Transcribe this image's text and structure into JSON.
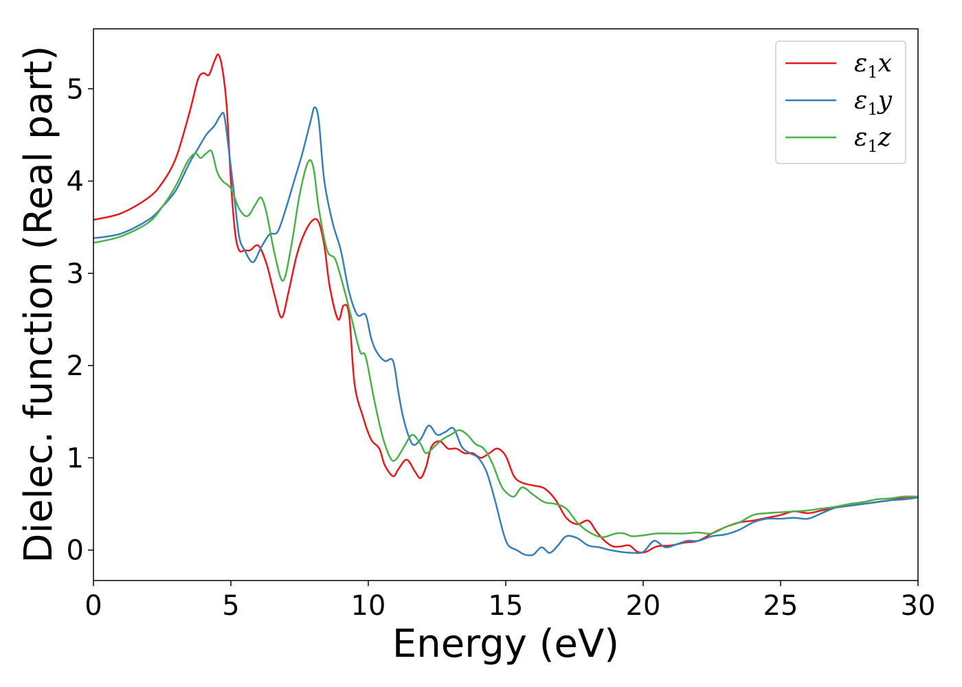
{
  "chart_data": {
    "type": "line",
    "title": "",
    "xlabel": "Energy (eV)",
    "ylabel": "Dielec. function (Real part)",
    "xlim": [
      0,
      30
    ],
    "ylim": [
      -0.33,
      5.65
    ],
    "xticks": [
      0,
      5,
      10,
      15,
      20,
      25,
      30
    ],
    "yticks": [
      0,
      1,
      2,
      3,
      4,
      5
    ],
    "xtick_labels": [
      "0",
      "5",
      "10",
      "15",
      "20",
      "25",
      "30"
    ],
    "ytick_labels": [
      "0",
      "1",
      "2",
      "3",
      "4",
      "5"
    ],
    "grid": false,
    "legend_position": "top-right",
    "series": [
      {
        "name": "ε₁x",
        "legend_label": {
          "base": "ε",
          "sub": "1",
          "suffix": "x"
        },
        "color": "#e41a1c",
        "x": [
          0,
          1,
          2,
          2.5,
          3,
          3.5,
          3.8,
          4.0,
          4.2,
          4.4,
          4.55,
          4.7,
          4.85,
          5.0,
          5.15,
          5.3,
          5.5,
          5.7,
          6.0,
          6.3,
          6.6,
          6.85,
          7.1,
          7.4,
          7.7,
          8.0,
          8.2,
          8.4,
          8.6,
          8.9,
          9.1,
          9.3,
          9.5,
          9.8,
          10.1,
          10.4,
          10.6,
          10.9,
          11.1,
          11.4,
          11.7,
          11.9,
          12.1,
          12.3,
          12.6,
          12.9,
          13.2,
          13.5,
          13.8,
          14.1,
          14.4,
          14.7,
          15.0,
          15.3,
          15.6,
          16.0,
          16.4,
          16.8,
          17.2,
          17.6,
          18.0,
          18.3,
          18.6,
          18.9,
          19.2,
          19.5,
          19.8,
          20.1,
          20.5,
          21.0,
          21.5,
          22.0,
          22.5,
          23.0,
          23.5,
          24.0,
          24.5,
          25.0,
          25.5,
          26.0,
          26.5,
          27.0,
          27.5,
          28.0,
          28.5,
          29.0,
          29.5,
          30
        ],
        "y": [
          3.58,
          3.65,
          3.82,
          3.98,
          4.25,
          4.75,
          5.1,
          5.17,
          5.15,
          5.3,
          5.37,
          5.2,
          4.8,
          4.0,
          3.45,
          3.25,
          3.25,
          3.25,
          3.3,
          3.1,
          2.75,
          2.52,
          2.8,
          3.2,
          3.45,
          3.58,
          3.55,
          3.3,
          2.85,
          2.5,
          2.65,
          2.55,
          1.8,
          1.45,
          1.2,
          1.1,
          0.92,
          0.8,
          0.88,
          0.98,
          0.85,
          0.78,
          0.9,
          1.12,
          1.18,
          1.1,
          1.1,
          1.05,
          1.05,
          1.0,
          1.05,
          1.1,
          1.02,
          0.8,
          0.73,
          0.7,
          0.67,
          0.55,
          0.35,
          0.28,
          0.32,
          0.2,
          0.1,
          0.04,
          0.04,
          0.05,
          -0.02,
          -0.02,
          0.04,
          0.05,
          0.08,
          0.1,
          0.18,
          0.25,
          0.3,
          0.32,
          0.35,
          0.38,
          0.42,
          0.4,
          0.43,
          0.46,
          0.48,
          0.5,
          0.52,
          0.54,
          0.57,
          0.58
        ]
      },
      {
        "name": "ε₁y",
        "legend_label": {
          "base": "ε",
          "sub": "1",
          "suffix": "y"
        },
        "color": "#377eb8",
        "x": [
          0,
          1,
          2,
          2.5,
          3,
          3.5,
          3.8,
          4.1,
          4.4,
          4.6,
          4.75,
          4.9,
          5.1,
          5.3,
          5.5,
          5.8,
          6.1,
          6.4,
          6.7,
          7.0,
          7.3,
          7.6,
          7.9,
          8.05,
          8.2,
          8.4,
          8.7,
          9.0,
          9.3,
          9.6,
          9.9,
          10.1,
          10.3,
          10.6,
          10.9,
          11.1,
          11.3,
          11.6,
          11.9,
          12.2,
          12.5,
          12.8,
          13.1,
          13.4,
          13.7,
          14.0,
          14.3,
          14.6,
          14.9,
          15.1,
          15.4,
          15.7,
          16.0,
          16.3,
          16.6,
          16.9,
          17.2,
          17.6,
          18.0,
          18.4,
          18.8,
          19.2,
          19.6,
          20.0,
          20.4,
          20.8,
          21.2,
          21.6,
          22.0,
          22.5,
          23.0,
          23.5,
          24.0,
          24.5,
          25.0,
          25.5,
          26.0,
          26.5,
          27.0,
          27.5,
          28.0,
          28.5,
          29.0,
          29.5,
          30
        ],
        "y": [
          3.38,
          3.43,
          3.58,
          3.72,
          3.9,
          4.2,
          4.35,
          4.5,
          4.6,
          4.7,
          4.72,
          4.4,
          3.9,
          3.4,
          3.25,
          3.12,
          3.28,
          3.42,
          3.45,
          3.7,
          4.0,
          4.3,
          4.65,
          4.8,
          4.65,
          4.0,
          3.55,
          3.25,
          2.8,
          2.55,
          2.55,
          2.3,
          2.15,
          2.05,
          2.05,
          1.7,
          1.4,
          1.15,
          1.2,
          1.35,
          1.25,
          1.28,
          1.32,
          1.12,
          1.05,
          1.0,
          0.85,
          0.55,
          0.2,
          0.05,
          0.0,
          -0.05,
          -0.05,
          0.03,
          -0.03,
          0.05,
          0.15,
          0.13,
          0.05,
          0.03,
          0.0,
          -0.02,
          -0.03,
          -0.02,
          0.1,
          0.03,
          0.06,
          0.1,
          0.1,
          0.15,
          0.17,
          0.22,
          0.3,
          0.34,
          0.34,
          0.35,
          0.34,
          0.4,
          0.46,
          0.48,
          0.5,
          0.52,
          0.54,
          0.55,
          0.57
        ]
      },
      {
        "name": "ε₁z",
        "legend_label": {
          "base": "ε",
          "sub": "1",
          "suffix": "z"
        },
        "color": "#4daf4a",
        "x": [
          0,
          1,
          2,
          2.5,
          3,
          3.4,
          3.7,
          3.9,
          4.1,
          4.3,
          4.5,
          4.7,
          5.0,
          5.3,
          5.6,
          5.9,
          6.1,
          6.3,
          6.6,
          6.9,
          7.2,
          7.5,
          7.8,
          8.0,
          8.2,
          8.5,
          8.8,
          9.1,
          9.4,
          9.7,
          9.9,
          10.2,
          10.5,
          10.8,
          11.0,
          11.3,
          11.6,
          11.9,
          12.1,
          12.4,
          12.7,
          13.0,
          13.3,
          13.6,
          13.9,
          14.2,
          14.5,
          14.8,
          15.0,
          15.3,
          15.6,
          16.0,
          16.4,
          16.8,
          17.2,
          17.6,
          18.0,
          18.5,
          19.0,
          19.3,
          19.6,
          20.0,
          20.5,
          21.0,
          21.5,
          22.0,
          22.5,
          23.0,
          23.5,
          24.0,
          24.5,
          25.0,
          25.5,
          26.0,
          26.5,
          27.0,
          27.5,
          28.0,
          28.5,
          29.0,
          29.5,
          30
        ],
        "y": [
          3.33,
          3.4,
          3.55,
          3.72,
          3.95,
          4.2,
          4.3,
          4.25,
          4.3,
          4.32,
          4.1,
          4.0,
          3.92,
          3.7,
          3.62,
          3.75,
          3.82,
          3.65,
          3.2,
          2.92,
          3.3,
          3.85,
          4.2,
          4.15,
          3.7,
          3.25,
          3.15,
          2.85,
          2.5,
          2.15,
          2.1,
          1.65,
          1.25,
          1.0,
          0.98,
          1.12,
          1.25,
          1.15,
          1.05,
          1.12,
          1.2,
          1.25,
          1.3,
          1.25,
          1.15,
          1.1,
          0.95,
          0.72,
          0.63,
          0.58,
          0.68,
          0.6,
          0.52,
          0.5,
          0.45,
          0.3,
          0.2,
          0.14,
          0.18,
          0.18,
          0.15,
          0.16,
          0.18,
          0.18,
          0.18,
          0.19,
          0.18,
          0.25,
          0.3,
          0.38,
          0.4,
          0.41,
          0.42,
          0.43,
          0.45,
          0.47,
          0.5,
          0.52,
          0.55,
          0.56,
          0.58,
          0.58
        ]
      }
    ]
  }
}
